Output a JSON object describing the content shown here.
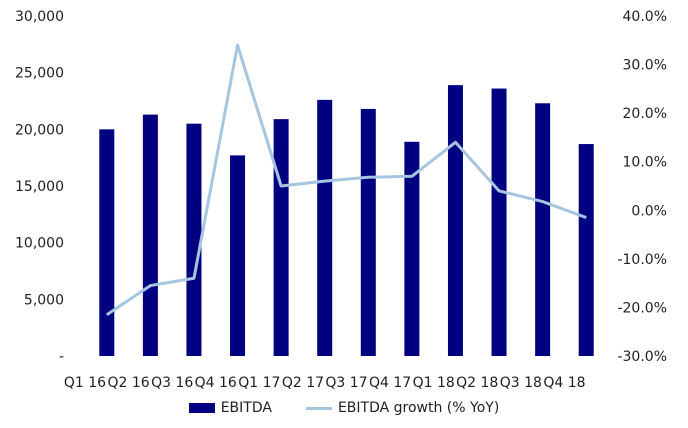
{
  "chart_data": {
    "type": "bar",
    "title": "",
    "categories": [
      "Q1 16",
      "Q2 16",
      "Q3 16",
      "Q4 16",
      "Q1 17",
      "Q2 17",
      "Q3 17",
      "Q4 17",
      "Q1 18",
      "Q2 18",
      "Q3 18",
      "Q4 18"
    ],
    "x_tick_labels": [
      "Q1 16",
      "Q2 16",
      "Q3 16",
      "Q4 16",
      "Q1 17",
      "Q2 17",
      "Q3 17",
      "Q4 17",
      "Q1 18",
      "Q2 18",
      "Q3 18",
      "Q4 18"
    ],
    "y_left": {
      "ylim": [
        0,
        30000
      ],
      "ticks": [
        0,
        5000,
        10000,
        15000,
        20000,
        25000,
        30000
      ],
      "tick_labels": [
        "-",
        "5,000",
        "10,000",
        "15,000",
        "20,000",
        "25,000",
        "30,000"
      ]
    },
    "y_right": {
      "ylim": [
        -30,
        40
      ],
      "ticks": [
        -30,
        -20,
        -10,
        0,
        10,
        20,
        30,
        40
      ],
      "tick_labels": [
        "-30.0%",
        "-20.0%",
        "-10.0%",
        "0.0%",
        "10.0%",
        "20.0%",
        "30.0%",
        "40.0%"
      ]
    },
    "series": [
      {
        "name": "EBITDA",
        "type": "bar",
        "axis": "left",
        "color": "#000080",
        "values": [
          20000,
          21300,
          20500,
          17700,
          20900,
          22600,
          21800,
          18900,
          23900,
          23600,
          22300,
          18700
        ]
      },
      {
        "name": "EBITDA growth (% YoY)",
        "type": "line",
        "axis": "right",
        "color": "#a6c5e0",
        "values": [
          -21.5,
          -15.5,
          -14.0,
          34.0,
          5.0,
          6.0,
          6.8,
          7.0,
          14.0,
          4.0,
          1.8,
          -1.5
        ]
      }
    ],
    "grid": false,
    "legend_position": "bottom"
  }
}
